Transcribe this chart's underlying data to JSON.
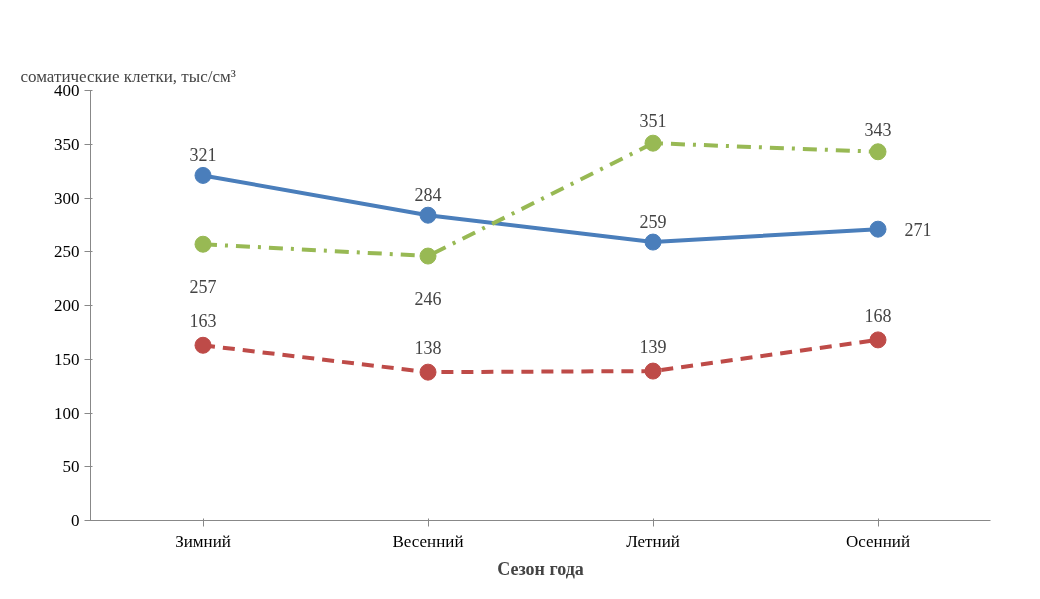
{
  "chart_data": {
    "type": "line",
    "ylabel": "соматические клетки, тыс/см³",
    "xlabel": "Сезон года",
    "categories": [
      "Зимний",
      "Весенний",
      "Летний",
      "Осенний"
    ],
    "series": [
      {
        "color": "#4a7ebb",
        "line_style": "solid",
        "values": [
          321,
          284,
          259,
          271
        ]
      },
      {
        "color": "#be4b48",
        "line_style": "dashed",
        "values": [
          163,
          138,
          139,
          168
        ]
      },
      {
        "color": "#98b954",
        "line_style": "dashdot",
        "values": [
          257,
          246,
          351,
          343
        ]
      }
    ],
    "ylim": [
      0,
      400
    ],
    "yticks": [
      0,
      50,
      100,
      150,
      200,
      250,
      300,
      350,
      400
    ],
    "marker": "circle",
    "grid": false,
    "data_labels": true
  }
}
